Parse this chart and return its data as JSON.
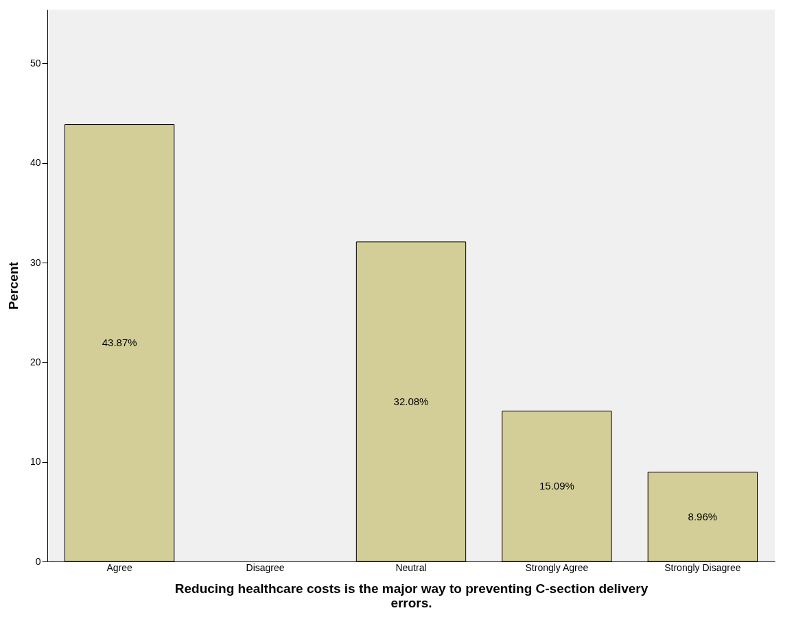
{
  "chart_data": {
    "type": "bar",
    "xlabel": "Reducing healthcare costs is the major way to preventing C-section delivery errors.",
    "ylabel": "Percent",
    "categories": [
      "Agree",
      "Disagree",
      "Neutral",
      "Strongly Agree",
      "Strongly Disagree"
    ],
    "values": [
      43.87,
      null,
      32.08,
      15.09,
      8.96
    ],
    "value_labels": [
      "43.87%",
      null,
      "32.08%",
      "15.09%",
      "8.96%"
    ],
    "color": "#d3ce97",
    "ylim": [
      0,
      55.4
    ],
    "yticks": [
      0,
      10,
      20,
      30,
      40,
      50
    ],
    "grid": false
  }
}
